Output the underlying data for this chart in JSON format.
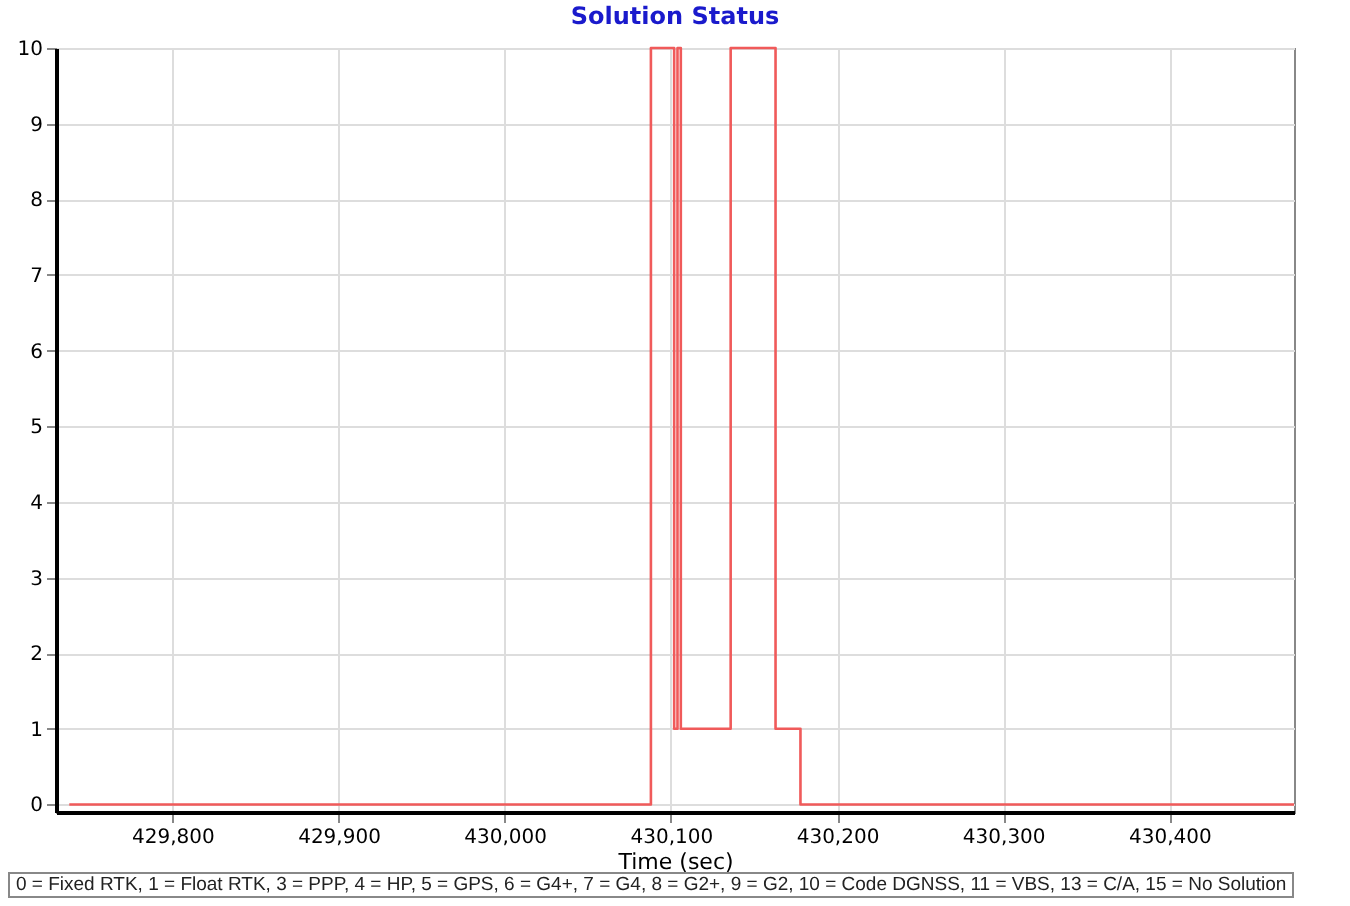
{
  "chart_data": {
    "type": "step",
    "title": "Solution Status",
    "xlabel": "Time (sec)",
    "x": [
      429738,
      430088,
      430102,
      430104,
      430106,
      430136,
      430163,
      430178,
      430475
    ],
    "series": [
      {
        "color": "#f05a5a",
        "values": [
          0,
          10,
          1,
          10,
          1,
          10,
          1,
          0,
          0
        ]
      }
    ],
    "xlim": [
      429730,
      430475
    ],
    "xticks": [
      {
        "value": 429800,
        "label": "429,800"
      },
      {
        "value": 429900,
        "label": "429,900"
      },
      {
        "value": 430000,
        "label": "430,000"
      },
      {
        "value": 430100,
        "label": "430,100"
      },
      {
        "value": 430200,
        "label": "430,200"
      },
      {
        "value": 430300,
        "label": "430,300"
      },
      {
        "value": 430400,
        "label": "430,400"
      }
    ],
    "ylim": [
      -0.1,
      10
    ],
    "yticks": [
      0,
      1,
      2,
      3,
      4,
      5,
      6,
      7,
      8,
      9,
      10
    ],
    "grid": true,
    "annotations": [
      "0 = Fixed RTK, 1 = Float RTK, 3 = PPP, 4 = HP, 5 = GPS, 6 = G4+, 7 = G4, 8 = G2+, 9 = G2, 10 = Code DGNSS, 11 = VBS, 13 = C/A, 15 = No Solution"
    ]
  }
}
